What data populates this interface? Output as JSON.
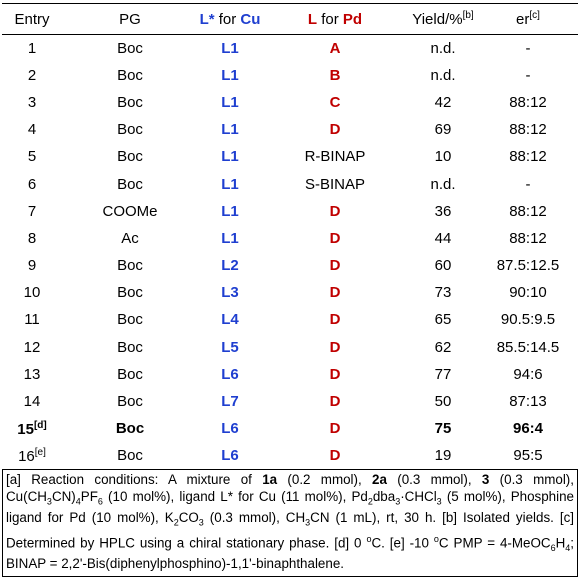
{
  "header": {
    "entry": "Entry",
    "pg": "PG",
    "lcu": [
      "L*",
      " for ",
      "Cu"
    ],
    "lpd": [
      "L",
      " for ",
      "Pd"
    ],
    "yield": [
      "Yield/%",
      "[b]"
    ],
    "er": [
      "er",
      "[c]"
    ]
  },
  "rows": [
    {
      "entry": "1",
      "pg": "Boc",
      "lcu": "L1",
      "lpd": "A",
      "yield": "n.d.",
      "er": "-"
    },
    {
      "entry": "2",
      "pg": "Boc",
      "lcu": "L1",
      "lpd": "B",
      "yield": "n.d.",
      "er": "-"
    },
    {
      "entry": "3",
      "pg": "Boc",
      "lcu": "L1",
      "lpd": "C",
      "yield": "42",
      "er": "88:12"
    },
    {
      "entry": "4",
      "pg": "Boc",
      "lcu": "L1",
      "lpd": "D",
      "yield": "69",
      "er": "88:12"
    },
    {
      "entry": "5",
      "pg": "Boc",
      "lcu": "L1",
      "lpd": "R-BINAP",
      "yield": "10",
      "er": "88:12"
    },
    {
      "entry": "6",
      "pg": "Boc",
      "lcu": "L1",
      "lpd": "S-BINAP",
      "yield": "n.d.",
      "er": "-"
    },
    {
      "entry": "7",
      "pg": "COOMe",
      "lcu": "L1",
      "lpd": "D",
      "yield": "36",
      "er": "88:12"
    },
    {
      "entry": "8",
      "pg": "Ac",
      "lcu": "L1",
      "lpd": "D",
      "yield": "44",
      "er": "88:12"
    },
    {
      "entry": "9",
      "pg": "Boc",
      "lcu": "L2",
      "lpd": "D",
      "yield": "60",
      "er": "87.5:12.5"
    },
    {
      "entry": "10",
      "pg": "Boc",
      "lcu": "L3",
      "lpd": "D",
      "yield": "73",
      "er": "90:10"
    },
    {
      "entry": "11",
      "pg": "Boc",
      "lcu": "L4",
      "lpd": "D",
      "yield": "65",
      "er": "90.5:9.5"
    },
    {
      "entry": "12",
      "pg": "Boc",
      "lcu": "L5",
      "lpd": "D",
      "yield": "62",
      "er": "85.5:14.5"
    },
    {
      "entry": "13",
      "pg": "Boc",
      "lcu": "L6",
      "lpd": "D",
      "yield": "77",
      "er": "94:6"
    },
    {
      "entry": "14",
      "pg": "Boc",
      "lcu": "L7",
      "lpd": "D",
      "yield": "50",
      "er": "87:13"
    },
    {
      "entry": "15",
      "note": "[d]",
      "pg": "Boc",
      "lcu": "L6",
      "lpd": "D",
      "yield": "75",
      "er": "96:4",
      "bold": true
    },
    {
      "entry": "16",
      "note": "[e]",
      "pg": "Boc",
      "lcu": "L6",
      "lpd": "D",
      "yield": "19",
      "er": "95:5"
    }
  ],
  "footnote": [
    [
      "[a] Reaction conditions: A mixture of ",
      ""
    ],
    [
      "1a",
      "b"
    ],
    [
      " (0.2 mmol), ",
      ""
    ],
    [
      "2a",
      "b"
    ],
    [
      " (0.3 mmol), ",
      ""
    ],
    [
      "3",
      "b"
    ],
    [
      " (0.3 mmol), Cu(CH",
      ""
    ],
    [
      "3",
      "sub"
    ],
    [
      "CN)",
      ""
    ],
    [
      "4",
      "sub"
    ],
    [
      "PF",
      ""
    ],
    [
      "6",
      "sub"
    ],
    [
      " (10 mol%), ligand L* for Cu (11 mol%), Pd",
      ""
    ],
    [
      "2",
      "sub"
    ],
    [
      "dba",
      ""
    ],
    [
      "3",
      "sub"
    ],
    [
      "·CHCl",
      ""
    ],
    [
      "3",
      "sub"
    ],
    [
      " (5 mol%), Phosphine ligand for Pd (10 mol%), K",
      ""
    ],
    [
      "2",
      "sub"
    ],
    [
      "CO",
      ""
    ],
    [
      "3",
      "sub"
    ],
    [
      " (0.3 mmol), CH",
      ""
    ],
    [
      "3",
      "sub"
    ],
    [
      "CN (1 mL), rt, 30 h. [b] Isolated yields. [c] Determined by HPLC using a chiral stationary phase. [d] 0 ",
      ""
    ],
    [
      "o",
      "sup"
    ],
    [
      "C. [e] -10 ",
      ""
    ],
    [
      "o",
      "sup"
    ],
    [
      "C PMP = 4-MeOC",
      ""
    ],
    [
      "6",
      "sub"
    ],
    [
      "H",
      ""
    ],
    [
      "4",
      "sub"
    ],
    [
      "; BINAP = 2,2'-Bis(diphenylphosphino)-1,1'-binaphthalene.",
      ""
    ]
  ]
}
